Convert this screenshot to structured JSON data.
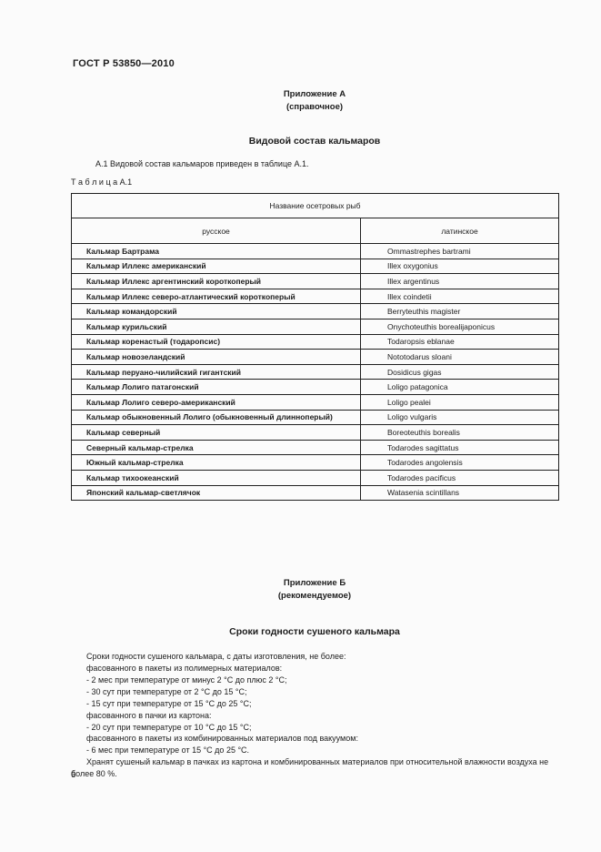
{
  "page": {
    "doc_number": "ГОСТ Р 53850—2010",
    "page_number": "6"
  },
  "annex_a": {
    "label": "Приложение А",
    "type": "(справочное)",
    "title": "Видовой состав кальмаров",
    "intro": "А.1  Видовой состав кальмаров приведен в таблице А.1.",
    "table_label": "Т а б л и ц а  А.1"
  },
  "table": {
    "caption": "Название осетровых рыб",
    "columns": [
      "русское",
      "латинское"
    ],
    "rows": [
      {
        "ru": "Кальмар Бартрама",
        "lat": "Ommastrephes bartrami"
      },
      {
        "ru": "Кальмар Иллекс американский",
        "lat": "Illex oxygonius"
      },
      {
        "ru": "Кальмар Иллекс аргентинский короткоперый",
        "lat": "Illex argentinus"
      },
      {
        "ru": "Кальмар Иллекс северо-атлантический короткоперый",
        "lat": "Illex coindetii"
      },
      {
        "ru": "Кальмар командорский",
        "lat": "Berryteuthis magister"
      },
      {
        "ru": "Кальмар курильский",
        "lat": "Onychoteuthis borealijaponicus"
      },
      {
        "ru": "Кальмар коренастый (тодаропсис)",
        "lat": "Todaropsis eblanae"
      },
      {
        "ru": "Кальмар новозеландский",
        "lat": "Nototodarus sloani"
      },
      {
        "ru": "Кальмар перуано-чилийский гигантский",
        "lat": "Dosidicus gigas"
      },
      {
        "ru": "Кальмар Лолиго патагонский",
        "lat": "Loligo patagonica"
      },
      {
        "ru": "Кальмар Лолиго северо-американский",
        "lat": "Loligo pealei"
      },
      {
        "ru": "Кальмар обыкновенный Лолиго (обыкновенный длинноперый)",
        "lat": "Loligo vulgaris"
      },
      {
        "ru": "Кальмар северный",
        "lat": "Boreoteuthis borealis"
      },
      {
        "ru": "Северный кальмар-стрелка",
        "lat": "Todarodes sagittatus"
      },
      {
        "ru": "Южный кальмар-стрелка",
        "lat": "Todarodes angolensis"
      },
      {
        "ru": "Кальмар тихоокеанский",
        "lat": "Todarodes pacificus"
      },
      {
        "ru": "Японский кальмар-светлячок",
        "lat": "Watasenia scintillans"
      }
    ]
  },
  "annex_b": {
    "label": "Приложение Б",
    "type": "(рекомендуемое)",
    "title": "Сроки годности сушеного кальмара",
    "lines": [
      "Сроки годности сушеного кальмара, с даты изготовления, не более:",
      "фасованного в пакеты из полимерных материалов:",
      "- 2 мес при температуре от минус 2 °С до плюс 2 °С;",
      "- 30 сут при температуре от 2 °С до 15 °С;",
      "- 15 сут при температуре от 15 °С до 25 °С;",
      "фасованного в пачки из картона:",
      "- 20 сут при температуре от 10 °С до 15 °С;",
      "фасованного в пакеты из комбинированных материалов под вакуумом:",
      "- 6 мес при температуре от 15 °С до 25 °С.",
      "Хранят сушеный кальмар в пачках из картона и комбинированных материалов при относительной влажности воздуха не более 80 %."
    ]
  }
}
